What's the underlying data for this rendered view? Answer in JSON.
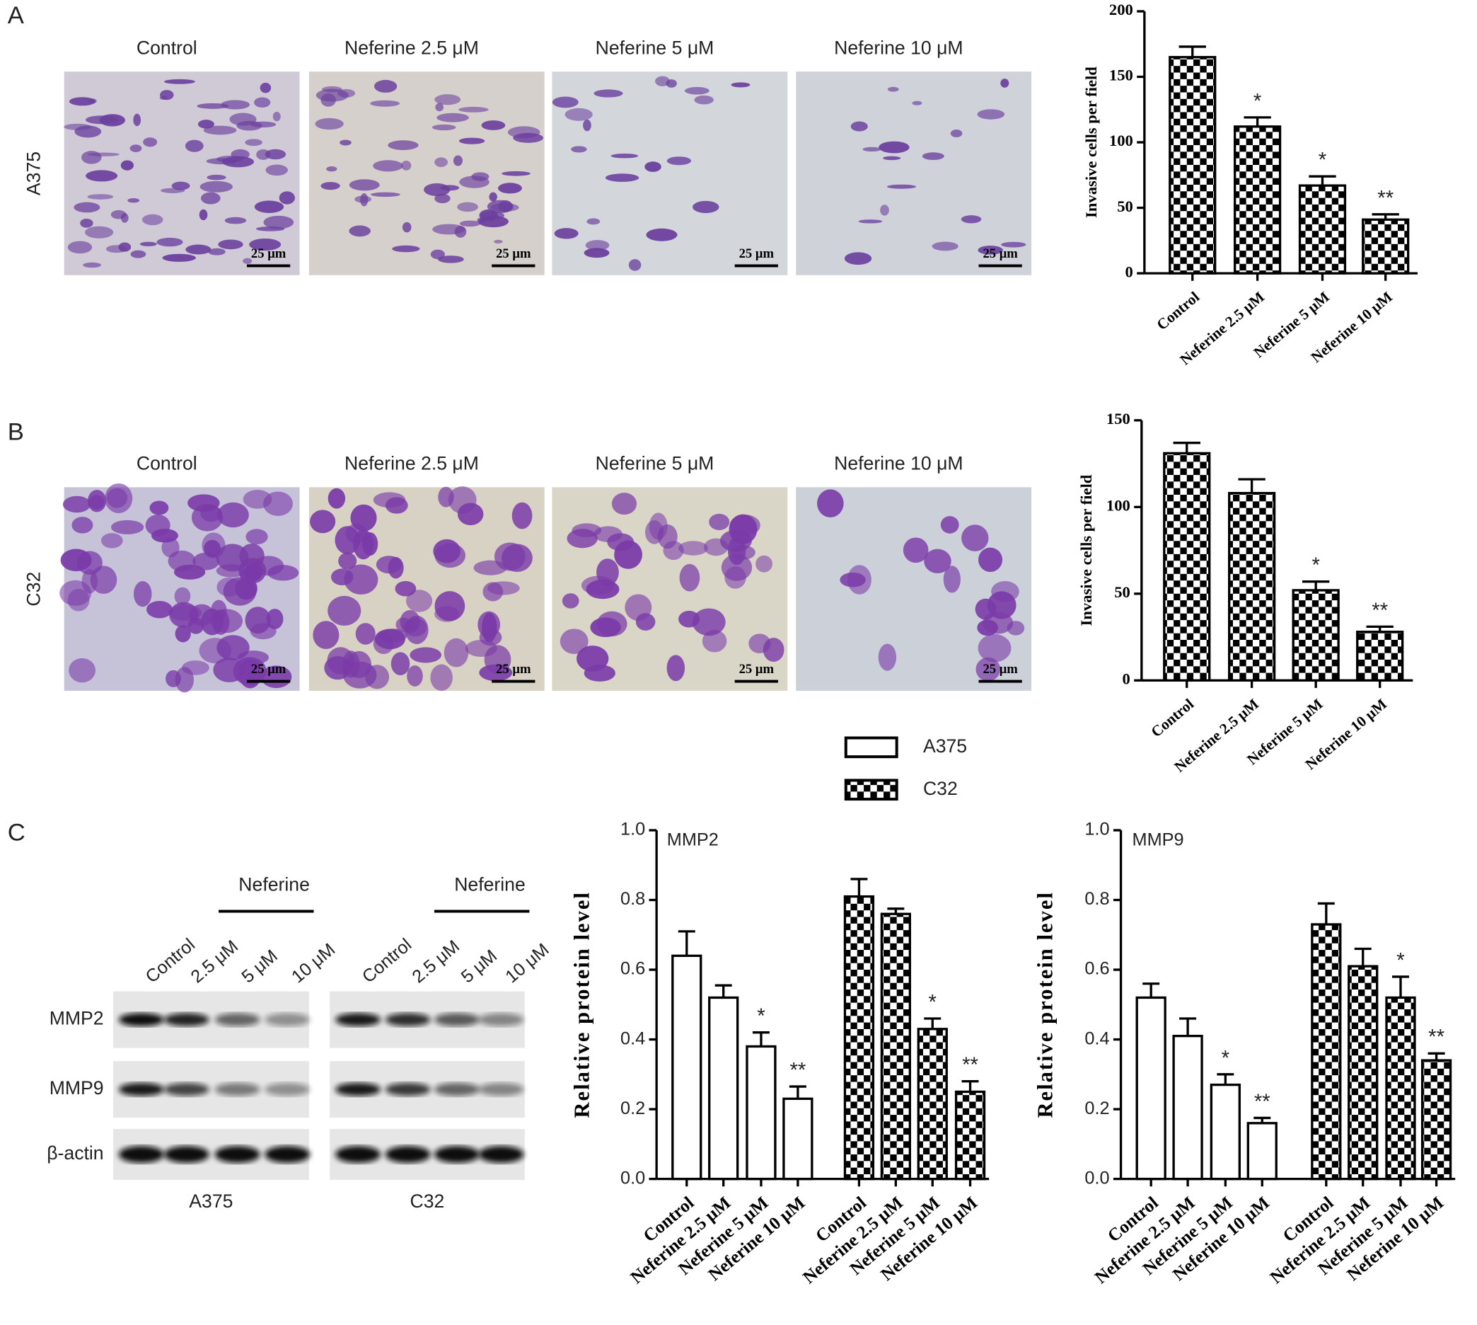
{
  "panel_labels": [
    "A",
    "B",
    "C"
  ],
  "micrographs": {
    "columns": [
      "Control",
      "Neferine 2.5 μM",
      "Neferine 5 μM",
      "Neferine 10 μM"
    ],
    "rows": [
      "A375",
      "C32"
    ],
    "scale_bar": "25 μm"
  },
  "western_blot": {
    "group_label": "Neferine",
    "lanes": [
      "Control",
      "2.5 μM",
      "5 μM",
      "10 μM"
    ],
    "proteins": [
      "MMP2",
      "MMP9",
      "β-actin"
    ],
    "cell_lines": [
      "A375",
      "C32"
    ]
  },
  "chart_data": [
    {
      "type": "bar",
      "ylabel": "Invasive cells per field",
      "categories": [
        "Control",
        "Neferine 2.5 μM",
        "Neferine 5 μM",
        "Neferine 10 μM"
      ],
      "values": [
        165,
        112,
        67,
        41
      ],
      "errors": [
        8,
        7,
        7,
        4
      ],
      "significance": [
        null,
        "*",
        "*",
        "**"
      ],
      "pattern": "checker",
      "ylim": [
        0,
        200
      ],
      "yticks": [
        0,
        50,
        100,
        150,
        200
      ]
    },
    {
      "type": "bar",
      "ylabel": "Invasive cells per field",
      "categories": [
        "Control",
        "Neferine 2.5 μM",
        "Neferine 5 μM",
        "Neferine 10 μM"
      ],
      "values": [
        131,
        108,
        52,
        28
      ],
      "errors": [
        6,
        8,
        5,
        3
      ],
      "significance": [
        null,
        null,
        "*",
        "**"
      ],
      "pattern": "checker",
      "ylim": [
        0,
        150
      ],
      "yticks": [
        0,
        50,
        100,
        150
      ]
    },
    {
      "type": "bar",
      "annotation": "MMP2",
      "ylabel": "Relative protein level",
      "categories": [
        "Control",
        "Neferine 2.5 μM",
        "Neferine 5 μM",
        "Neferine 10 μM"
      ],
      "series": [
        {
          "name": "A375",
          "pattern": "open",
          "values": [
            0.64,
            0.52,
            0.38,
            0.23
          ],
          "errors": [
            0.07,
            0.035,
            0.04,
            0.035
          ],
          "significance": [
            null,
            null,
            "*",
            "**"
          ]
        },
        {
          "name": "C32",
          "pattern": "checker",
          "values": [
            0.81,
            0.76,
            0.43,
            0.25
          ],
          "errors": [
            0.05,
            0.015,
            0.03,
            0.03
          ],
          "significance": [
            null,
            null,
            "*",
            "**"
          ]
        }
      ],
      "ylim": [
        0,
        1
      ],
      "yticks": [
        {
          "value": 0,
          "label": "0.0"
        },
        0.2,
        0.4,
        0.6,
        0.8,
        {
          "value": 1,
          "label": "1.0"
        }
      ]
    },
    {
      "type": "bar",
      "annotation": "MMP9",
      "ylabel": "Relative protein level",
      "categories": [
        "Control",
        "Neferine 2.5 μM",
        "Neferine 5 μM",
        "Neferine 10 μM"
      ],
      "series": [
        {
          "name": "A375",
          "pattern": "open",
          "values": [
            0.52,
            0.41,
            0.27,
            0.16
          ],
          "errors": [
            0.04,
            0.05,
            0.03,
            0.015
          ],
          "significance": [
            null,
            null,
            "*",
            "**"
          ]
        },
        {
          "name": "C32",
          "pattern": "checker",
          "values": [
            0.73,
            0.61,
            0.52,
            0.34
          ],
          "errors": [
            0.06,
            0.05,
            0.06,
            0.02
          ],
          "significance": [
            null,
            null,
            "*",
            "**"
          ]
        }
      ],
      "ylim": [
        0,
        1
      ],
      "yticks": [
        {
          "value": 0,
          "label": "0.0"
        },
        0.2,
        0.4,
        0.6,
        0.8,
        {
          "value": 1,
          "label": "1.0"
        }
      ]
    }
  ]
}
